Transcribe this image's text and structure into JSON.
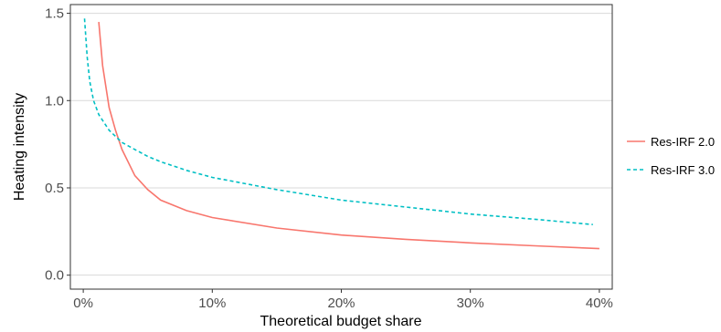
{
  "chart_data": {
    "type": "line",
    "title": "",
    "xlabel": "Theoretical budget share",
    "ylabel": "Heating intensity",
    "xlim": [
      -0.01,
      0.41
    ],
    "ylim": [
      -0.08,
      1.55
    ],
    "x_ticks": [
      0,
      0.1,
      0.2,
      0.3,
      0.4
    ],
    "x_tick_labels": [
      "0%",
      "10%",
      "20%",
      "30%",
      "40%"
    ],
    "y_ticks": [
      0.0,
      0.5,
      1.0,
      1.5
    ],
    "y_tick_labels": [
      "0.0",
      "0.5",
      "1.0",
      "1.5"
    ],
    "grid": true,
    "legend_position": "right",
    "series": [
      {
        "name": "Res-IRF 2.0",
        "color": "#F8766D",
        "linestyle": "solid",
        "x": [
          0.012,
          0.015,
          0.02,
          0.025,
          0.03,
          0.04,
          0.05,
          0.06,
          0.08,
          0.1,
          0.15,
          0.2,
          0.25,
          0.3,
          0.35,
          0.4
        ],
        "y": [
          1.45,
          1.2,
          0.96,
          0.83,
          0.72,
          0.57,
          0.49,
          0.43,
          0.37,
          0.33,
          0.27,
          0.23,
          0.205,
          0.185,
          0.168,
          0.152
        ]
      },
      {
        "name": "Res-IRF 3.0",
        "color": "#00BFC4",
        "linestyle": "dashed",
        "x": [
          0.001,
          0.003,
          0.005,
          0.008,
          0.012,
          0.02,
          0.03,
          0.04,
          0.05,
          0.06,
          0.08,
          0.1,
          0.15,
          0.2,
          0.25,
          0.3,
          0.35,
          0.395
        ],
        "y": [
          1.47,
          1.25,
          1.11,
          1.0,
          0.92,
          0.83,
          0.76,
          0.72,
          0.68,
          0.65,
          0.6,
          0.56,
          0.49,
          0.43,
          0.39,
          0.35,
          0.32,
          0.29
        ]
      }
    ]
  }
}
